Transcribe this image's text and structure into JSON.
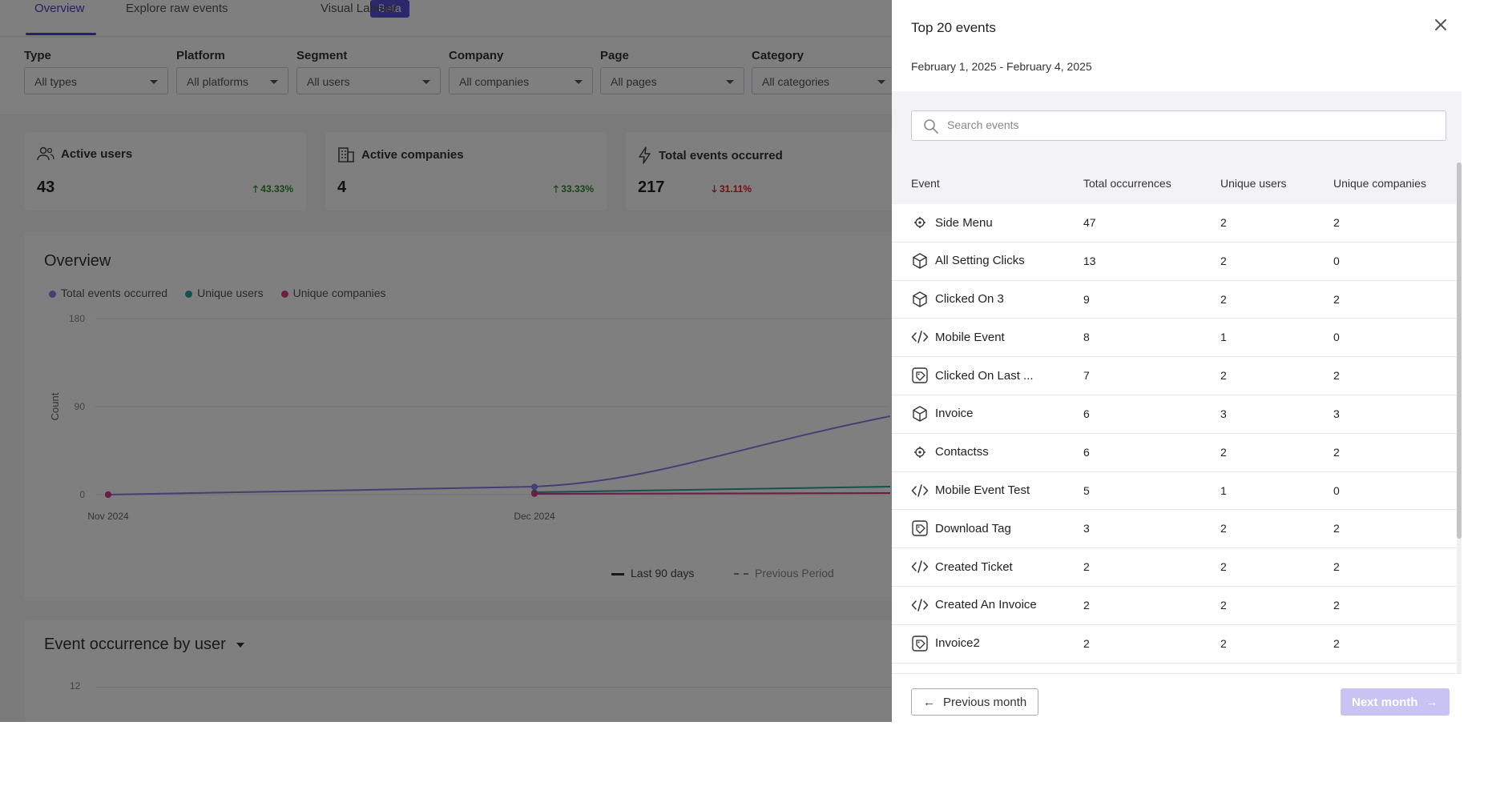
{
  "tabs": {
    "overview": "Overview",
    "raw_events": "Explore raw events",
    "beta": "Beta",
    "visual_labeler": "Visual Labeler"
  },
  "filters": [
    {
      "label": "Type",
      "value": "All types"
    },
    {
      "label": "Platform",
      "value": "All platforms"
    },
    {
      "label": "Segment",
      "value": "All users"
    },
    {
      "label": "Company",
      "value": "All companies"
    },
    {
      "label": "Page",
      "value": "All pages"
    },
    {
      "label": "Category",
      "value": "All categories"
    }
  ],
  "stats": [
    {
      "title": "Active users",
      "value": "43",
      "delta": "43.33%",
      "direction": "up"
    },
    {
      "title": "Active companies",
      "value": "4",
      "delta": "33.33%",
      "direction": "up"
    },
    {
      "title": "Total events occurred",
      "value": "217",
      "delta": "31.11%",
      "direction": "down"
    }
  ],
  "overview": {
    "title": "Overview",
    "legend": [
      "Total events occurred",
      "Unique users",
      "Unique companies"
    ],
    "y_label": "Count",
    "y_ticks": [
      "180",
      "90",
      "0"
    ],
    "x_ticks": [
      "Nov 2024",
      "Dec 2024"
    ],
    "period_legend": [
      "Last 90 days",
      "Previous Period"
    ]
  },
  "chart_data": {
    "type": "line",
    "title": "Overview",
    "ylabel": "Count",
    "ylim": [
      0,
      180
    ],
    "x": [
      "Nov 2024",
      "Dec 2024"
    ],
    "series": [
      {
        "name": "Total events occurred",
        "values": [
          0,
          8
        ]
      },
      {
        "name": "Unique users",
        "values": [
          0,
          2
        ]
      },
      {
        "name": "Unique companies",
        "values": [
          0,
          1
        ]
      }
    ]
  },
  "occurrence": {
    "title": "Event occurrence by user",
    "y_tick": "12"
  },
  "colors": {
    "accent": "#4b45c8",
    "series_total": "#8c7ce8",
    "series_users": "#2aa59a",
    "series_companies": "#d63d8a"
  },
  "drawer": {
    "title": "Top 20 events",
    "date_range": "February 1, 2025 - February 4, 2025",
    "search_placeholder": "Search events",
    "columns": [
      "Event",
      "Total occurrences",
      "Unique users",
      "Unique companies"
    ],
    "rows": [
      {
        "icon": "target-icon",
        "name": "Side Menu",
        "total": "47",
        "users": "2",
        "companies": "2"
      },
      {
        "icon": "cube-icon",
        "name": "All Setting Clicks",
        "total": "13",
        "users": "2",
        "companies": "0"
      },
      {
        "icon": "cube-icon",
        "name": "Clicked On 3",
        "total": "9",
        "users": "2",
        "companies": "2"
      },
      {
        "icon": "code-icon",
        "name": "Mobile Event",
        "total": "8",
        "users": "1",
        "companies": "0"
      },
      {
        "icon": "tag-icon",
        "name": "Clicked On Last ...",
        "total": "7",
        "users": "2",
        "companies": "2"
      },
      {
        "icon": "cube-icon",
        "name": "Invoice",
        "total": "6",
        "users": "3",
        "companies": "3"
      },
      {
        "icon": "target-icon",
        "name": "Contactss",
        "total": "6",
        "users": "2",
        "companies": "2"
      },
      {
        "icon": "code-icon",
        "name": "Mobile Event Test",
        "total": "5",
        "users": "1",
        "companies": "0"
      },
      {
        "icon": "tag-icon",
        "name": "Download Tag",
        "total": "3",
        "users": "2",
        "companies": "2"
      },
      {
        "icon": "code-icon",
        "name": "Created Ticket",
        "total": "2",
        "users": "2",
        "companies": "2"
      },
      {
        "icon": "code-icon",
        "name": "Created An Invoice",
        "total": "2",
        "users": "2",
        "companies": "2"
      },
      {
        "icon": "tag-icon",
        "name": "Invoice2",
        "total": "2",
        "users": "2",
        "companies": "2"
      }
    ],
    "prev_label": "Previous month",
    "next_label": "Next month"
  }
}
